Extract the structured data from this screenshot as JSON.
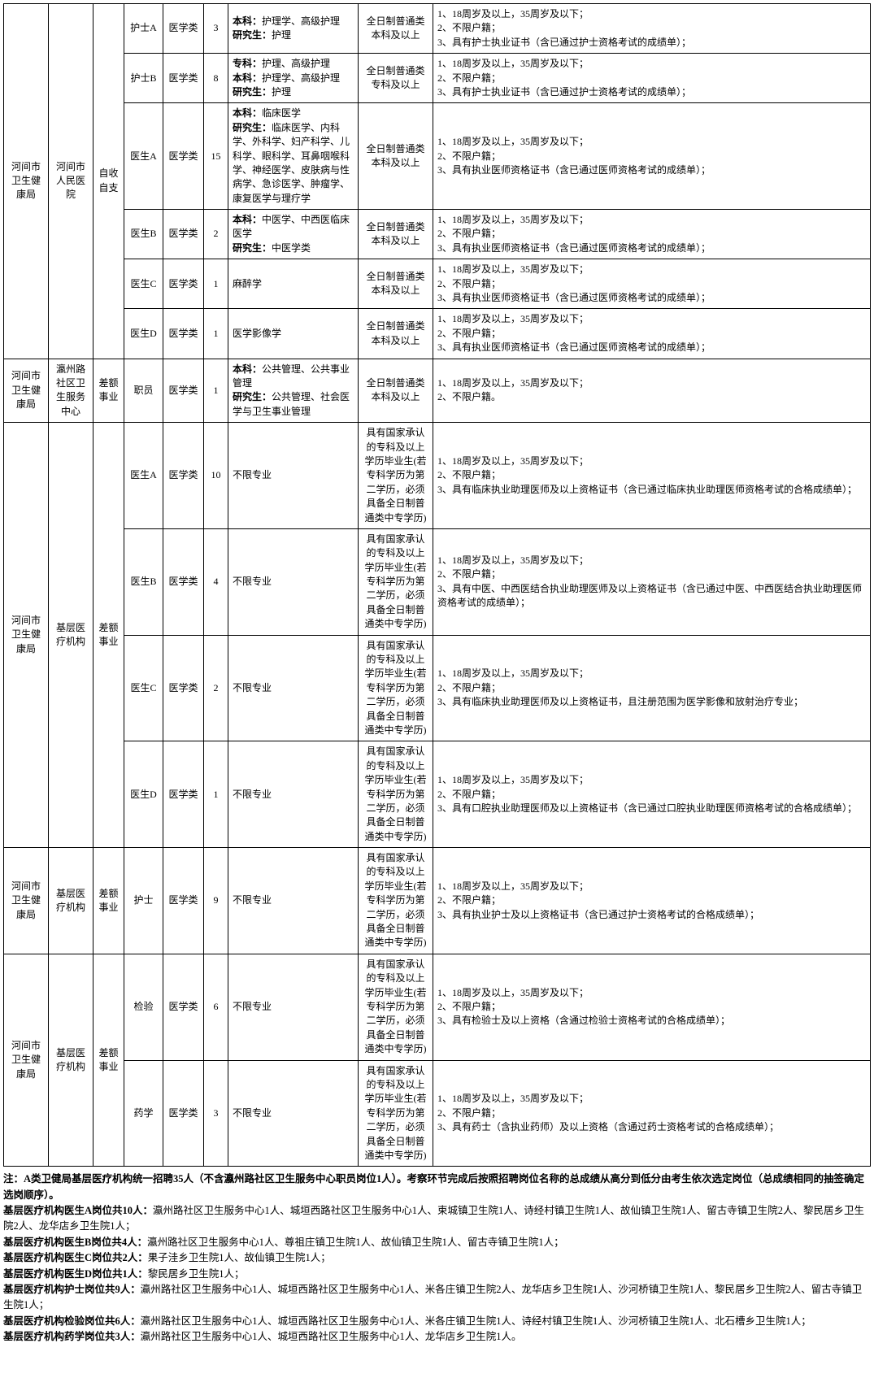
{
  "table": {
    "groups": [
      {
        "dept": "河间市卫生健康局",
        "unit": "河间市人民医院",
        "funding": "自收自支",
        "rows": [
          {
            "post": "护士A",
            "cat": "医学类",
            "num": "3",
            "major": "<span class='bold'>本科：</span>护理学、高级护理<br><span class='bold'>研究生：</span>护理",
            "edu": "全日制普通类本科及以上",
            "req": "1、18周岁及以上，35周岁及以下；<br>2、不限户籍；<br>3、具有护士执业证书（含已通过护士资格考试的成绩单）；"
          },
          {
            "post": "护士B",
            "cat": "医学类",
            "num": "8",
            "major": "<span class='bold'>专科：</span>护理、高级护理<br><span class='bold'>本科：</span>护理学、高级护理<br><span class='bold'>研究生：</span>护理",
            "edu": "全日制普通类专科及以上",
            "req": "1、18周岁及以上，35周岁及以下；<br>2、不限户籍；<br>3、具有护士执业证书（含已通过护士资格考试的成绩单）；"
          },
          {
            "post": "医生A",
            "cat": "医学类",
            "num": "15",
            "major": "<span class='bold'>本科：</span>临床医学<br><span class='bold'>研究生：</span>临床医学、内科学、外科学、妇产科学、儿科学、眼科学、耳鼻咽喉科学、神经医学、皮肤病与性病学、急诊医学、肿瘤学、康复医学与理疗学",
            "edu": "全日制普通类本科及以上",
            "req": "1、18周岁及以上，35周岁及以下；<br>2、不限户籍；<br>3、具有执业医师资格证书（含已通过医师资格考试的成绩单）；"
          },
          {
            "post": "医生B",
            "cat": "医学类",
            "num": "2",
            "major": "<span class='bold'>本科：</span>中医学、中西医临床医学<br><span class='bold'>研究生：</span>中医学类",
            "edu": "全日制普通类本科及以上",
            "req": "1、18周岁及以上，35周岁及以下；<br>2、不限户籍；<br>3、具有执业医师资格证书（含已通过医师资格考试的成绩单）；"
          },
          {
            "post": "医生C",
            "cat": "医学类",
            "num": "1",
            "major": "麻醉学",
            "edu": "全日制普通类本科及以上",
            "req": "1、18周岁及以上，35周岁及以下；<br>2、不限户籍；<br>3、具有执业医师资格证书（含已通过医师资格考试的成绩单）；"
          },
          {
            "post": "医生D",
            "cat": "医学类",
            "num": "1",
            "major": "医学影像学",
            "edu": "全日制普通类本科及以上",
            "req": "1、18周岁及以上，35周岁及以下；<br>2、不限户籍；<br>3、具有执业医师资格证书（含已通过医师资格考试的成绩单）；"
          }
        ]
      },
      {
        "dept": "河间市卫生健康局",
        "unit": "瀛州路社区卫生服务中心",
        "funding": "差额事业",
        "rows": [
          {
            "post": "职员",
            "cat": "医学类",
            "num": "1",
            "major": "<span class='bold'>本科：</span>公共管理、公共事业管理<br><span class='bold'>研究生：</span>公共管理、社会医学与卫生事业管理",
            "edu": "全日制普通类本科及以上",
            "req": "1、18周岁及以上，35周岁及以下；<br>2、不限户籍。"
          }
        ]
      },
      {
        "dept": "河间市卫生健康局",
        "unit": "基层医疗机构",
        "funding": "差额事业",
        "rows": [
          {
            "post": "医生A",
            "cat": "医学类",
            "num": "10",
            "major": "不限专业",
            "edu": "具有国家承认的专科及以上学历毕业生(若专科学历为第二学历，必须具备全日制普通类中专学历)",
            "req": "1、18周岁及以上，35周岁及以下；<br>2、不限户籍；<br>3、具有临床执业助理医师及以上资格证书（含已通过临床执业助理医师资格考试的合格成绩单）；"
          },
          {
            "post": "医生B",
            "cat": "医学类",
            "num": "4",
            "major": "不限专业",
            "edu": "具有国家承认的专科及以上学历毕业生(若专科学历为第二学历，必须具备全日制普通类中专学历)",
            "req": "1、18周岁及以上，35周岁及以下；<br>2、不限户籍；<br>3、具有中医、中西医结合执业助理医师及以上资格证书（含已通过中医、中西医结合执业助理医师资格考试的成绩单）；"
          },
          {
            "post": "医生C",
            "cat": "医学类",
            "num": "2",
            "major": "不限专业",
            "edu": "具有国家承认的专科及以上学历毕业生(若专科学历为第二学历，必须具备全日制普通类中专学历)",
            "req": "1、18周岁及以上，35周岁及以下；<br>2、不限户籍；<br>3、具有临床执业助理医师及以上资格证书，且注册范围为医学影像和放射治疗专业；"
          },
          {
            "post": "医生D",
            "cat": "医学类",
            "num": "1",
            "major": "不限专业",
            "edu": "具有国家承认的专科及以上学历毕业生(若专科学历为第二学历，必须具备全日制普通类中专学历)",
            "req": "1、18周岁及以上，35周岁及以下；<br>2、不限户籍；<br>3、具有口腔执业助理医师及以上资格证书（含已通过口腔执业助理医师资格考试的合格成绩单）；"
          }
        ]
      },
      {
        "dept": "河间市卫生健康局",
        "unit": "基层医疗机构",
        "funding": "差额事业",
        "rows": [
          {
            "post": "护士",
            "cat": "医学类",
            "num": "9",
            "major": "不限专业",
            "edu": "具有国家承认的专科及以上学历毕业生(若专科学历为第二学历，必须具备全日制普通类中专学历)",
            "req": "1、18周岁及以上，35周岁及以下；<br>2、不限户籍；<br>3、具有执业护士及以上资格证书（含已通过护士资格考试的合格成绩单）；"
          }
        ]
      },
      {
        "dept": "河间市卫生健康局",
        "unit": "基层医疗机构",
        "funding": "差额事业",
        "rows": [
          {
            "post": "检验",
            "cat": "医学类",
            "num": "6",
            "major": "不限专业",
            "edu": "具有国家承认的专科及以上学历毕业生(若专科学历为第二学历，必须具备全日制普通类中专学历)",
            "req": "1、18周岁及以上，35周岁及以下；<br>2、不限户籍；<br>3、具有检验士及以上资格（含通过检验士资格考试的合格成绩单）；"
          },
          {
            "post": "药学",
            "cat": "医学类",
            "num": "3",
            "major": "不限专业",
            "edu": "具有国家承认的专科及以上学历毕业生(若专科学历为第二学历，必须具备全日制普通类中专学历)",
            "req": "1、18周岁及以上，35周岁及以下；<br>2、不限户籍；<br>3、具有药士（含执业药师）及以上资格（含通过药士资格考试的合格成绩单）；"
          }
        ]
      }
    ]
  },
  "notes": [
    "<span class='bold'>注：A类卫健局基层医疗机构统一招聘35人（不含瀛州路社区卫生服务中心职员岗位1人）。考察环节完成后按照招聘岗位名称的总成绩从高分到低分由考生依次选定岗位（总成绩相同的抽签确定选岗顺序）。</span>",
    "<span class='bold'>基层医疗机构医生A岗位共10人：</span>瀛州路社区卫生服务中心1人、城垣西路社区卫生服务中心1人、束城镇卫生院1人、诗经村镇卫生院1人、故仙镇卫生院1人、留古寺镇卫生院2人、黎民居乡卫生院2人、龙华店乡卫生院1人；",
    "<span class='bold'>基层医疗机构医生B岗位共4人：</span>瀛州路社区卫生服务中心1人、尊祖庄镇卫生院1人、故仙镇卫生院1人、留古寺镇卫生院1人；",
    "<span class='bold'>基层医疗机构医生C岗位共2人：</span>果子洼乡卫生院1人、故仙镇卫生院1人；",
    "<span class='bold'>基层医疗机构医生D岗位共1人：</span>黎民居乡卫生院1人；",
    "<span class='bold'>基层医疗机构护士岗位共9人：</span>瀛州路社区卫生服务中心1人、城垣西路社区卫生服务中心1人、米各庄镇卫生院2人、龙华店乡卫生院1人、沙河桥镇卫生院1人、黎民居乡卫生院2人、留古寺镇卫生院1人；",
    "<span class='bold'>基层医疗机构检验岗位共6人：</span>瀛州路社区卫生服务中心1人、城垣西路社区卫生服务中心1人、米各庄镇卫生院1人、诗经村镇卫生院1人、沙河桥镇卫生院1人、北石槽乡卫生院1人；",
    "<span class='bold'>基层医疗机构药学岗位共3人：</span>瀛州路社区卫生服务中心1人、城垣西路社区卫生服务中心1人、龙华店乡卫生院1人。"
  ]
}
